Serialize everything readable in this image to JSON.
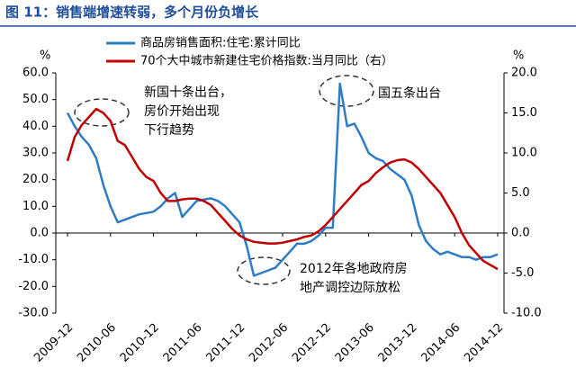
{
  "chart_data": {
    "type": "line",
    "title": "图 11：销售端增速转弱，多个月份负增长",
    "ylabel": "%",
    "y2label": "%",
    "categories": [
      "2009-12",
      null,
      null,
      null,
      null,
      null,
      "2010-06",
      null,
      null,
      null,
      null,
      null,
      "2010-12",
      null,
      null,
      null,
      null,
      null,
      "2011-06",
      null,
      null,
      null,
      null,
      null,
      "2011-12",
      null,
      null,
      null,
      null,
      null,
      "2012-06",
      null,
      null,
      null,
      null,
      null,
      "2012-12",
      null,
      null,
      null,
      null,
      null,
      "2013-06",
      null,
      null,
      null,
      null,
      null,
      "2013-12",
      null,
      null,
      null,
      null,
      null,
      "2014-06",
      null,
      null,
      null,
      null,
      null,
      "2014-12"
    ],
    "series": [
      {
        "name": "商品房销售面积:住宅:累计同比",
        "color": "#2e7cc4",
        "axis": "y",
        "values": [
          45,
          40,
          36,
          33,
          28,
          18,
          10,
          4,
          5,
          6,
          7,
          7.5,
          8,
          10,
          13,
          15,
          6,
          9,
          12,
          12.5,
          13,
          12,
          10,
          7,
          4,
          -5,
          -16,
          -15,
          -14,
          -13,
          -10,
          -7,
          -4,
          -4,
          -3,
          -1,
          2,
          2,
          56,
          40,
          41,
          36,
          30,
          28,
          27,
          24,
          22,
          20,
          14,
          3,
          -3,
          -6,
          -8,
          -7,
          -8,
          -9,
          -9,
          -10,
          -9,
          -9,
          -8
        ]
      },
      {
        "name": "70个大中城市新建住宅价格指数:当月同比（右）",
        "color": "#c00000",
        "axis": "y2",
        "values": [
          9,
          12,
          13.5,
          14.5,
          15.5,
          15,
          14,
          11.5,
          11,
          9.5,
          8,
          7,
          6.5,
          5,
          4,
          4,
          4.2,
          4.3,
          4.3,
          4,
          3.5,
          2.5,
          1.5,
          0.5,
          -0.3,
          -0.8,
          -1.1,
          -1.2,
          -1.3,
          -1.3,
          -1.2,
          -1,
          -0.8,
          -0.5,
          -0.3,
          0.2,
          1,
          2,
          3,
          4,
          5,
          6,
          6.5,
          7.5,
          8.2,
          8.8,
          9.1,
          9.2,
          8.8,
          8,
          7,
          6,
          5,
          3.5,
          2,
          0,
          -1.5,
          -2.5,
          -3.5,
          -4,
          -4.5
        ]
      }
    ],
    "ylim": [
      -30,
      60
    ],
    "yticks": [
      {
        "value": -30,
        "label": "-30.0"
      },
      {
        "value": -20,
        "label": "-20.0"
      },
      {
        "value": -10,
        "label": "-10.0"
      },
      {
        "value": 0,
        "label": "0.0"
      },
      {
        "value": 10,
        "label": "10.0"
      },
      {
        "value": 20,
        "label": "20.0"
      },
      {
        "value": 30,
        "label": "30.0"
      },
      {
        "value": 40,
        "label": "40.0"
      },
      {
        "value": 50,
        "label": "50.0"
      },
      {
        "value": 60,
        "label": "60.0"
      }
    ],
    "y2lim": [
      -10,
      20
    ],
    "y2ticks": [
      {
        "value": -10,
        "label": "-10.0"
      },
      {
        "value": -5,
        "label": "-5.0"
      },
      {
        "value": 0,
        "label": "0.0"
      },
      {
        "value": 5,
        "label": "5.0"
      },
      {
        "value": 10,
        "label": "10.0"
      },
      {
        "value": 15,
        "label": "15.0"
      },
      {
        "value": 20,
        "label": "20.0"
      }
    ],
    "annotations": [
      {
        "lines": [
          "新国十条出台，",
          "房价开始出现",
          "下行趋势"
        ]
      },
      {
        "lines": [
          "国五条出台"
        ]
      },
      {
        "lines": [
          "2012年各地政府房",
          "地产调控边际放松"
        ]
      }
    ]
  }
}
